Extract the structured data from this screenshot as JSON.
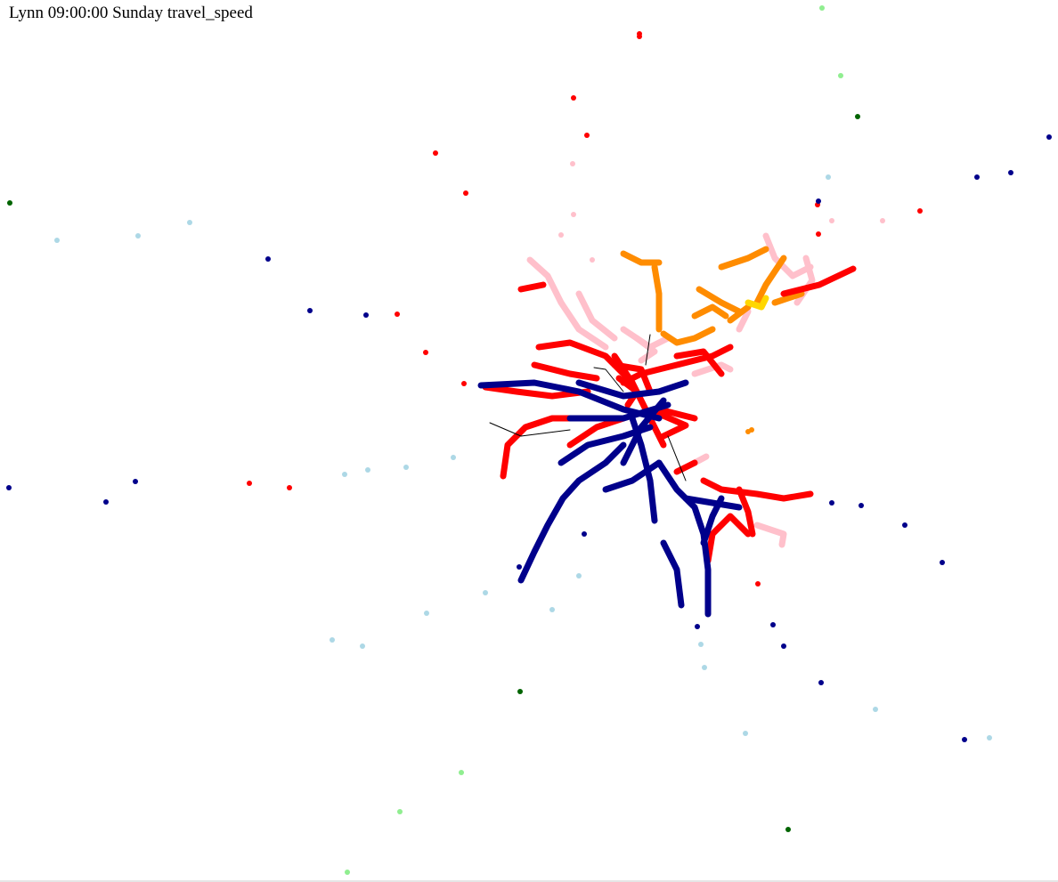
{
  "title": "Lynn 09:00:00 Sunday travel_speed"
}
